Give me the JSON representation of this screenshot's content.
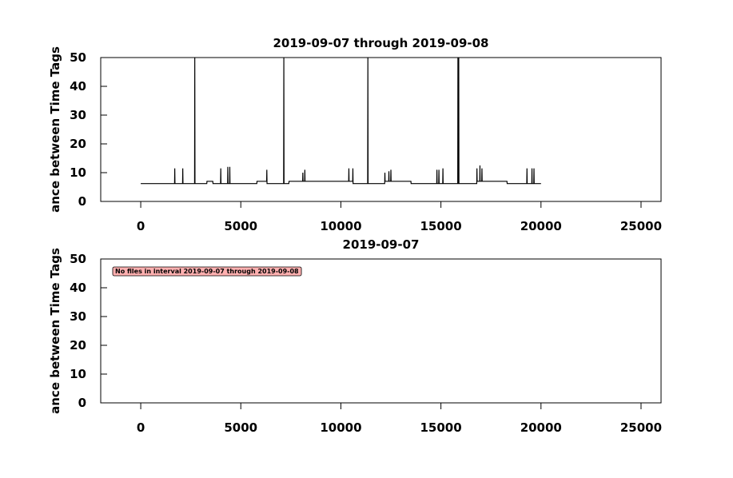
{
  "chart_data": [
    {
      "type": "line",
      "title": "2019-09-07 through 2019-09-08",
      "y_label": "ance between Time Tags",
      "xlim": [
        -2000,
        26000
      ],
      "xticks": [
        0,
        5000,
        10000,
        15000,
        20000,
        25000
      ],
      "ylim": [
        0,
        50
      ],
      "yticks": [
        0,
        10,
        20,
        30,
        40,
        50
      ],
      "series": [
        {
          "color": "#000000",
          "x": [
            0,
            1690,
            1700,
            1710,
            2090,
            2100,
            2110,
            2690,
            2700,
            2710,
            3300,
            3310,
            3600,
            3610,
            3990,
            4000,
            4010,
            4340,
            4350,
            4360,
            4440,
            4450,
            4460,
            5800,
            5810,
            6290,
            6300,
            6310,
            7140,
            7150,
            7160,
            7400,
            7410,
            8090,
            8100,
            8110,
            8190,
            8200,
            8210,
            10390,
            10400,
            10410,
            10590,
            10600,
            10610,
            11340,
            11350,
            11360,
            12190,
            12200,
            12210,
            12390,
            12400,
            12410,
            12490,
            12500,
            12510,
            13500,
            13510,
            14790,
            14800,
            14810,
            14890,
            14900,
            14910,
            15090,
            15100,
            15110,
            15840,
            15850,
            15860,
            15880,
            15890,
            15900,
            16790,
            16800,
            16810,
            16940,
            16950,
            16960,
            17040,
            17050,
            17060,
            18300,
            18310,
            19290,
            19300,
            19310,
            19540,
            19550,
            19560,
            19640,
            19650,
            19660,
            20000
          ],
          "values": [
            6.2,
            6.2,
            11.5,
            6.2,
            6.2,
            11.5,
            6.2,
            6.2,
            50,
            6.2,
            6.2,
            7,
            7,
            6.2,
            6.2,
            11.5,
            6.2,
            6.2,
            12,
            6.2,
            6.2,
            12,
            6.2,
            6.2,
            7,
            7,
            11,
            6.2,
            6.2,
            50,
            6.2,
            6.2,
            7,
            7,
            10,
            7,
            7,
            11,
            7,
            7,
            11.5,
            7,
            7,
            11.5,
            6.2,
            6.2,
            50,
            6.2,
            6.2,
            10,
            7,
            7,
            10.5,
            7,
            7,
            11,
            7,
            7,
            6.2,
            6.2,
            11,
            6.2,
            6.2,
            11,
            6.2,
            6.2,
            11.5,
            6.2,
            6.2,
            50,
            6.2,
            6.2,
            50,
            6.2,
            6.2,
            11.5,
            7,
            7,
            12.5,
            7,
            7,
            11.5,
            7,
            7,
            6.2,
            6.2,
            11.5,
            6.2,
            6.2,
            11.5,
            6.2,
            6.2,
            11.5,
            6.2,
            6.2
          ]
        }
      ]
    },
    {
      "type": "line",
      "title": "2019-09-07",
      "y_label": "ance between Time Tags",
      "annotation": "No files in interval 2019-09-07 through 2019-09-08",
      "xlim": [
        -2000,
        26000
      ],
      "xticks": [
        0,
        5000,
        10000,
        15000,
        20000,
        25000
      ],
      "ylim": [
        0,
        50
      ],
      "yticks": [
        0,
        10,
        20,
        30,
        40,
        50
      ],
      "series": []
    }
  ]
}
